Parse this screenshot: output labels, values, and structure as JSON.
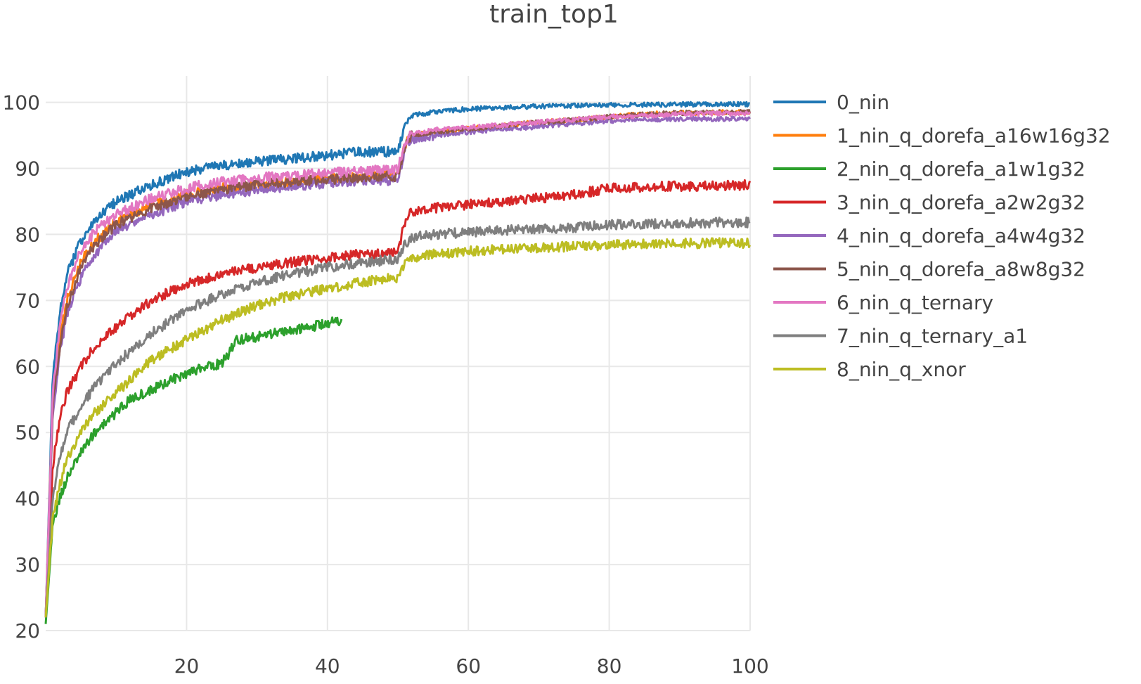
{
  "chart_data": {
    "type": "line",
    "title": "train_top1",
    "xlabel": "",
    "ylabel": "",
    "xlim": [
      0,
      100
    ],
    "ylim": [
      20,
      104
    ],
    "xticks": [
      20,
      40,
      60,
      80,
      100
    ],
    "yticks": [
      20,
      30,
      40,
      50,
      60,
      70,
      80,
      90,
      100
    ],
    "grid": true,
    "legend_position": "right",
    "series": [
      {
        "name": "0_nin",
        "color": "#1f77b4",
        "x": [
          0,
          1,
          2,
          3,
          5,
          7,
          10,
          15,
          20,
          25,
          30,
          35,
          40,
          45,
          50,
          51,
          52,
          55,
          60,
          65,
          70,
          75,
          80,
          85,
          90,
          95,
          100
        ],
        "y": [
          22,
          58,
          68,
          74,
          79,
          82,
          85,
          87.5,
          89.5,
          90.5,
          91,
          91.5,
          92,
          92.5,
          92.5,
          96.5,
          98,
          98.5,
          99,
          99.2,
          99.4,
          99.5,
          99.6,
          99.6,
          99.7,
          99.7,
          99.7
        ]
      },
      {
        "name": "1_nin_q_dorefa_a16w16g32",
        "color": "#ff7f0e",
        "x": [
          0,
          1,
          2,
          3,
          5,
          7,
          10,
          15,
          20,
          25,
          30,
          35,
          40,
          45,
          50,
          51,
          52,
          55,
          60,
          65,
          70,
          75,
          80,
          85,
          90,
          95,
          100
        ],
        "y": [
          22,
          55,
          64,
          70,
          76,
          79,
          82,
          84.5,
          86,
          87,
          87.5,
          88,
          88.5,
          88.8,
          89,
          93.5,
          95,
          95.5,
          96,
          96.5,
          97,
          97.3,
          97.8,
          98.2,
          98.4,
          98.5,
          98.5
        ]
      },
      {
        "name": "2_nin_q_dorefa_a1w1g32",
        "color": "#2ca02c",
        "x": [
          0,
          1,
          2,
          3,
          5,
          7,
          10,
          12,
          15,
          20,
          25,
          26,
          27,
          30,
          35,
          40,
          42
        ],
        "y": [
          21,
          36,
          40,
          43,
          47,
          50,
          53,
          55,
          56.5,
          59,
          60.5,
          62,
          64,
          64.5,
          65.5,
          66.5,
          67
        ]
      },
      {
        "name": "3_nin_q_dorefa_a2w2g32",
        "color": "#d62728",
        "x": [
          0,
          1,
          2,
          3,
          5,
          7,
          10,
          15,
          20,
          25,
          30,
          35,
          40,
          45,
          50,
          51,
          52,
          55,
          60,
          65,
          70,
          75,
          80,
          85,
          90,
          95,
          100
        ],
        "y": [
          22,
          45,
          52,
          56,
          60,
          63,
          66,
          70,
          72.5,
          74,
          75,
          75.8,
          76.5,
          77,
          77.2,
          82,
          83.5,
          84,
          84.5,
          85,
          85.5,
          86,
          87,
          87.2,
          87.3,
          87.4,
          87.5
        ]
      },
      {
        "name": "4_nin_q_dorefa_a4w4g32",
        "color": "#9467bd",
        "x": [
          0,
          1,
          2,
          3,
          5,
          7,
          10,
          15,
          20,
          25,
          30,
          35,
          40,
          45,
          50,
          51,
          52,
          55,
          60,
          65,
          70,
          75,
          80,
          85,
          90,
          95,
          100
        ],
        "y": [
          22,
          53,
          62,
          68,
          73.5,
          77,
          80.5,
          83,
          85,
          86,
          86.8,
          87.3,
          87.8,
          88.2,
          88.2,
          93,
          94.3,
          95,
          95.5,
          96,
          96.3,
          96.8,
          97.2,
          97.4,
          97.5,
          97.5,
          97.5
        ]
      },
      {
        "name": "5_nin_q_dorefa_a8w8g32",
        "color": "#8c564b",
        "x": [
          0,
          1,
          2,
          3,
          5,
          7,
          10,
          15,
          20,
          25,
          30,
          35,
          40,
          45,
          50,
          51,
          52,
          55,
          60,
          65,
          70,
          75,
          80,
          85,
          90,
          95,
          100
        ],
        "y": [
          22,
          54,
          63,
          69,
          75,
          78.5,
          81.5,
          84,
          85.8,
          86.8,
          87.5,
          88,
          88.3,
          88.6,
          88.8,
          93.5,
          95,
          95.5,
          96,
          96.5,
          97,
          97.3,
          97.8,
          98.2,
          98.4,
          98.5,
          98.5
        ]
      },
      {
        "name": "6_nin_q_ternary",
        "color": "#e377c2",
        "x": [
          0,
          1,
          2,
          3,
          5,
          7,
          10,
          15,
          20,
          25,
          30,
          35,
          40,
          45,
          50,
          51,
          52,
          55,
          60,
          65,
          70,
          75,
          80,
          85,
          90,
          95,
          100
        ],
        "y": [
          22,
          56,
          66,
          72,
          77.5,
          80.5,
          83,
          85.5,
          87,
          88,
          88.5,
          89,
          89.3,
          89.6,
          89.8,
          94,
          95.2,
          95.8,
          96.2,
          96.6,
          97,
          97.4,
          97.8,
          98,
          98.2,
          98.3,
          98.3
        ]
      },
      {
        "name": "7_nin_q_ternary_a1",
        "color": "#7f7f7f",
        "x": [
          0,
          1,
          2,
          3,
          5,
          7,
          10,
          15,
          20,
          25,
          30,
          35,
          40,
          45,
          50,
          51,
          52,
          55,
          60,
          65,
          70,
          75,
          80,
          85,
          90,
          95,
          100
        ],
        "y": [
          22,
          40,
          46,
          50,
          54,
          57,
          60.5,
          65,
          68.5,
          71,
          72.8,
          74,
          75,
          75.8,
          76.2,
          78.5,
          79.5,
          80,
          80.3,
          80.6,
          80.8,
          81,
          81.5,
          81.6,
          81.7,
          81.8,
          81.8
        ]
      },
      {
        "name": "8_nin_q_xnor",
        "color": "#bcbd22",
        "x": [
          0,
          1,
          2,
          3,
          5,
          7,
          10,
          15,
          20,
          25,
          30,
          35,
          40,
          45,
          50,
          51,
          52,
          55,
          60,
          65,
          70,
          75,
          80,
          85,
          90,
          95,
          100
        ],
        "y": [
          22,
          37,
          42,
          46,
          50,
          53,
          56,
          61,
          64,
          67,
          69.3,
          70.8,
          71.8,
          72.8,
          73.5,
          75.5,
          76.5,
          77,
          77.5,
          77.8,
          78,
          78.2,
          78.4,
          78.5,
          78.6,
          78.7,
          78.7
        ]
      }
    ]
  }
}
